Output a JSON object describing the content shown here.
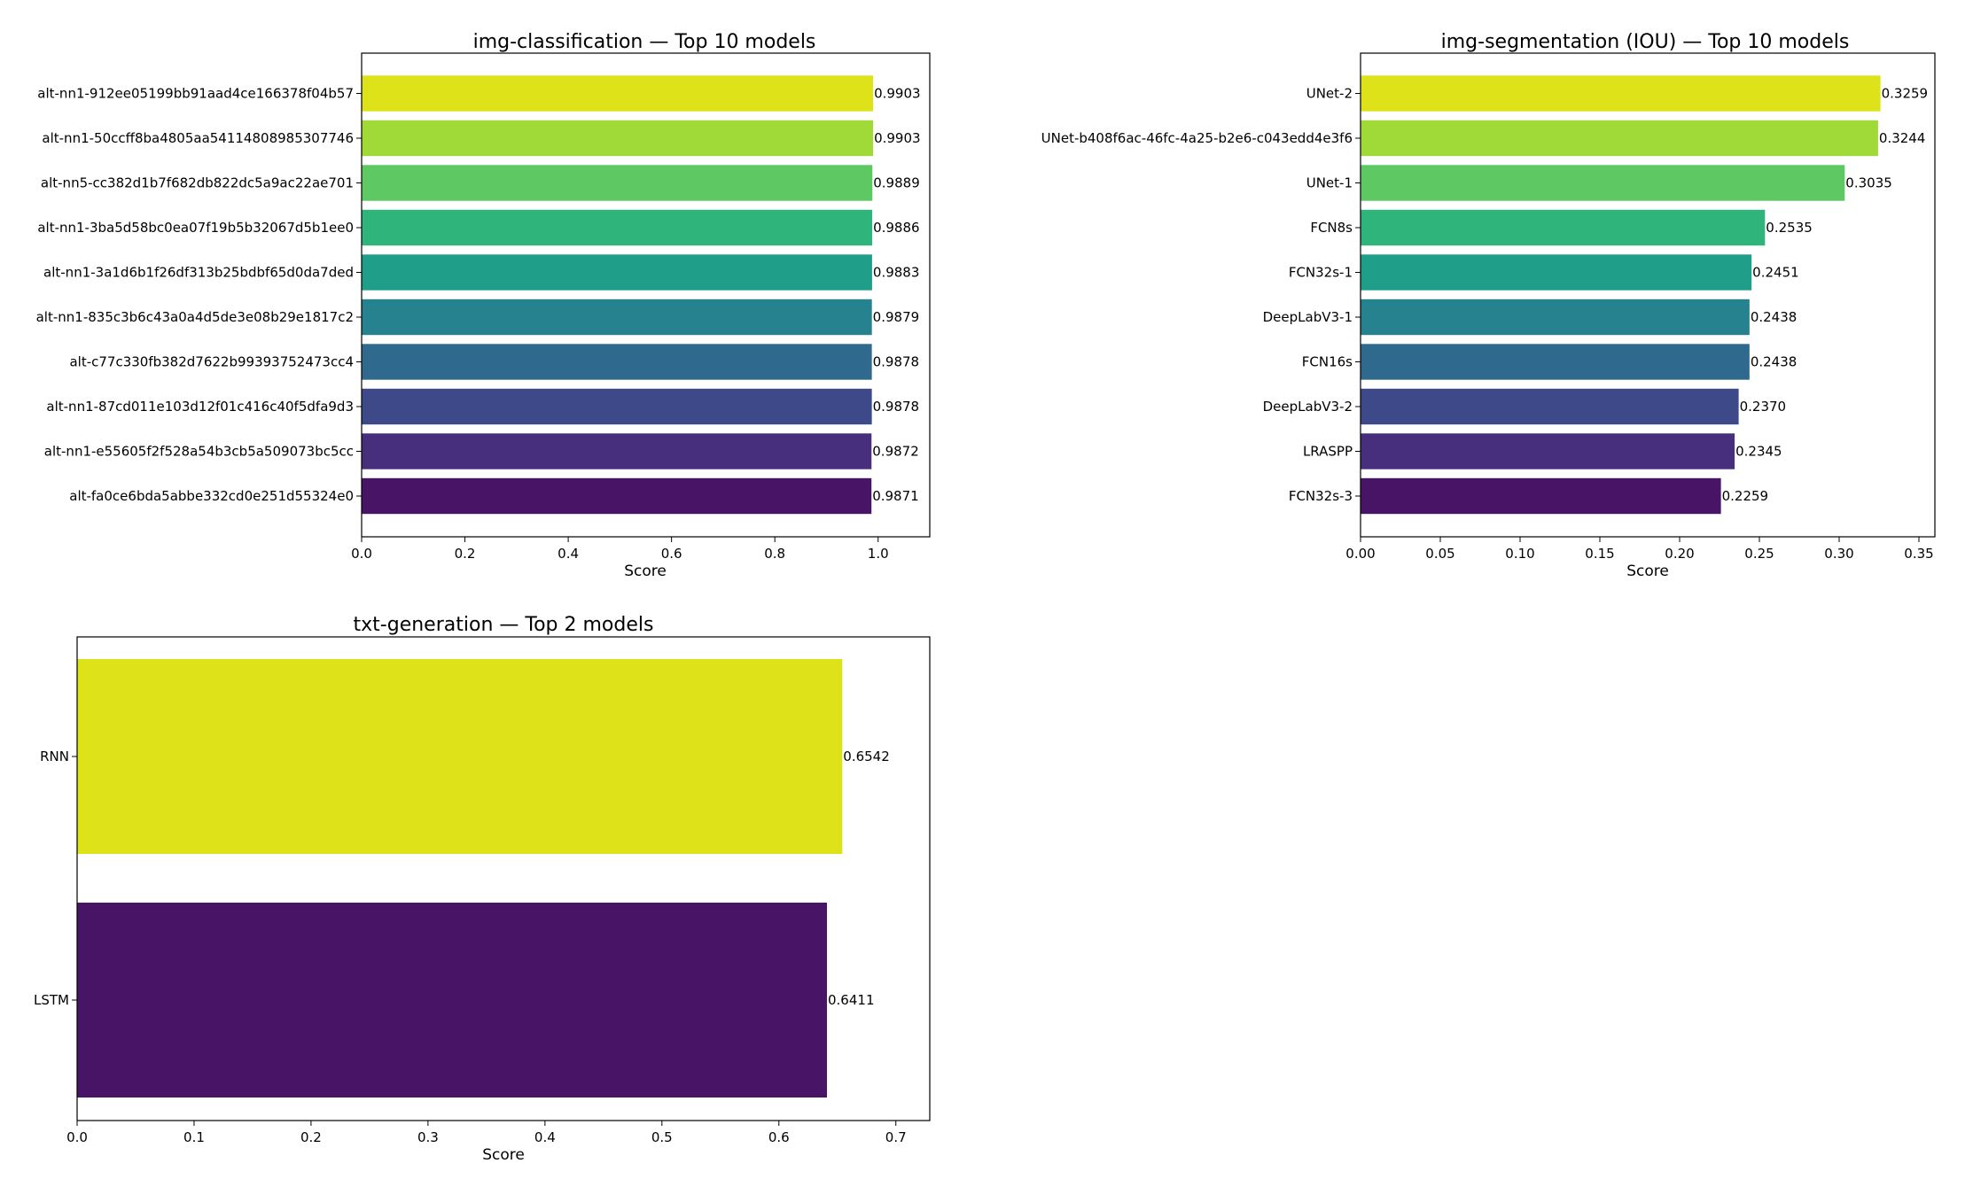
{
  "chart_data": [
    {
      "type": "bar",
      "orientation": "horizontal",
      "title": "img-classification — Top 10 models",
      "xlabel": "Score",
      "ylabel": "",
      "xlim": [
        0,
        1.1
      ],
      "xticks": [
        0.0,
        0.2,
        0.4,
        0.6,
        0.8,
        1.0
      ],
      "xtick_labels": [
        "0.0",
        "0.2",
        "0.4",
        "0.6",
        "0.8",
        "1.0"
      ],
      "grid": false,
      "categories": [
        "alt-nn1-912ee05199bb91aad4ce166378f04b57",
        "alt-nn1-50ccff8ba4805aa54114808985307746",
        "alt-nn5-cc382d1b7f682db822dc5a9ac22ae701",
        "alt-nn1-3ba5d58bc0ea07f19b5b32067d5b1ee0",
        "alt-nn1-3a1d6b1f26df313b25bdbf65d0da7ded",
        "alt-nn1-835c3b6c43a0a4d5de3e08b29e1817c2",
        "alt-c77c330fb382d7622b99393752473cc4",
        "alt-nn1-87cd011e103d12f01c416c40f5dfa9d3",
        "alt-nn1-e55605f2f528a54b3cb5a509073bc5cc",
        "alt-fa0ce6bda5abbe332cd0e251d55324e0"
      ],
      "values": [
        0.9903,
        0.9903,
        0.9889,
        0.9886,
        0.9883,
        0.9879,
        0.9878,
        0.9878,
        0.9872,
        0.9871
      ],
      "value_labels": [
        "0.9903",
        "0.9903",
        "0.9889",
        "0.9886",
        "0.9883",
        "0.9879",
        "0.9878",
        "0.9878",
        "0.9872",
        "0.9871"
      ],
      "colors": [
        "#dde318",
        "#a0da39",
        "#5ec962",
        "#2fb47c",
        "#1f9e89",
        "#26828e",
        "#30698e",
        "#3e4989",
        "#472f7d",
        "#481466"
      ]
    },
    {
      "type": "bar",
      "orientation": "horizontal",
      "title": "img-segmentation (IOU) — Top 10 models",
      "xlabel": "Score",
      "ylabel": "",
      "xlim": [
        0,
        0.36
      ],
      "xticks": [
        0.0,
        0.05,
        0.1,
        0.15,
        0.2,
        0.25,
        0.3,
        0.35
      ],
      "xtick_labels": [
        "0.00",
        "0.05",
        "0.10",
        "0.15",
        "0.20",
        "0.25",
        "0.30",
        "0.35"
      ],
      "grid": false,
      "categories": [
        "UNet-2",
        "UNet-b408f6ac-46fc-4a25-b2e6-c043edd4e3f6",
        "UNet-1",
        "FCN8s",
        "FCN32s-1",
        "DeepLabV3-1",
        "FCN16s",
        "DeepLabV3-2",
        "LRASPP",
        "FCN32s-3"
      ],
      "values": [
        0.3259,
        0.3244,
        0.3035,
        0.2535,
        0.2451,
        0.2438,
        0.2438,
        0.237,
        0.2345,
        0.2259
      ],
      "value_labels": [
        "0.3259",
        "0.3244",
        "0.3035",
        "0.2535",
        "0.2451",
        "0.2438",
        "0.2438",
        "0.2370",
        "0.2345",
        "0.2259"
      ],
      "colors": [
        "#dde318",
        "#a0da39",
        "#5ec962",
        "#2fb47c",
        "#1f9e89",
        "#26828e",
        "#30698e",
        "#3e4989",
        "#472f7d",
        "#481466"
      ]
    },
    {
      "type": "bar",
      "orientation": "horizontal",
      "title": "txt-generation — Top 2 models",
      "xlabel": "Score",
      "ylabel": "",
      "xlim": [
        0,
        0.729
      ],
      "xticks": [
        0.0,
        0.1,
        0.2,
        0.3,
        0.4,
        0.5,
        0.6,
        0.7
      ],
      "xtick_labels": [
        "0.0",
        "0.1",
        "0.2",
        "0.3",
        "0.4",
        "0.5",
        "0.6",
        "0.7"
      ],
      "grid": false,
      "categories": [
        "RNN",
        "LSTM"
      ],
      "values": [
        0.6542,
        0.6411
      ],
      "value_labels": [
        "0.6542",
        "0.6411"
      ],
      "colors": [
        "#dde318",
        "#481466"
      ]
    }
  ]
}
